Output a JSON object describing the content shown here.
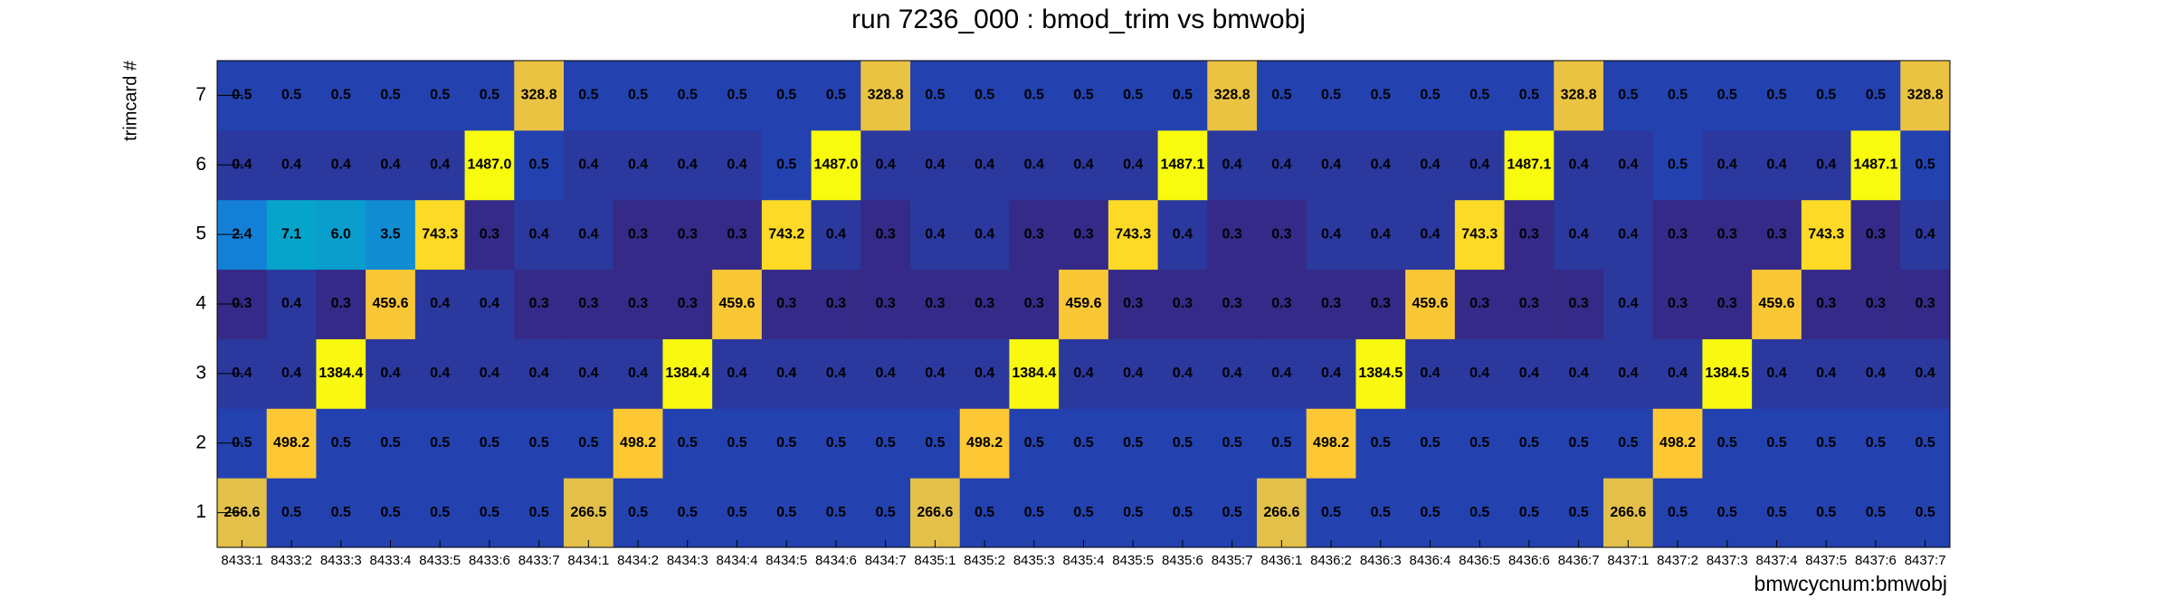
{
  "chart_data": {
    "type": "heatmap",
    "title": "run 7236_000 : bmod_trim vs bmwobj",
    "x_label": "bmwcycnum:bmwobj",
    "y_label": "trimcard #",
    "zlog": true,
    "palette": [
      "#352a87",
      "#0f5cdd",
      "#1481d6",
      "#06a4ca",
      "#2eb7a4",
      "#87bf77",
      "#d1bb59",
      "#fec832",
      "#f9fb0e"
    ],
    "categories": [
      "8433:1",
      "8433:2",
      "8433:3",
      "8433:4",
      "8433:5",
      "8433:6",
      "8433:7",
      "8434:1",
      "8434:2",
      "8434:3",
      "8434:4",
      "8434:5",
      "8434:6",
      "8434:7",
      "8435:1",
      "8435:2",
      "8435:3",
      "8435:4",
      "8435:5",
      "8435:6",
      "8435:7",
      "8436:1",
      "8436:2",
      "8436:3",
      "8436:4",
      "8436:5",
      "8436:6",
      "8436:7",
      "8437:1",
      "8437:2",
      "8437:3",
      "8437:4",
      "8437:5",
      "8437:6",
      "8437:7"
    ],
    "y_categories": [
      "1",
      "2",
      "3",
      "4",
      "5",
      "6",
      "7"
    ],
    "rows": [
      {
        "values": [
          266.6,
          0.5,
          0.5,
          0.5,
          0.5,
          0.5,
          0.5,
          266.5,
          0.5,
          0.5,
          0.5,
          0.5,
          0.5,
          0.5,
          266.6,
          0.5,
          0.5,
          0.5,
          0.5,
          0.5,
          0.5,
          266.6,
          0.5,
          0.5,
          0.5,
          0.5,
          0.5,
          0.5,
          266.6,
          0.5,
          0.5,
          0.5,
          0.5,
          0.5,
          0.5
        ],
        "value_labels": [
          "266.6",
          "0.5",
          "0.5",
          "0.5",
          "0.5",
          "0.5",
          "0.5",
          "266.5",
          "0.5",
          "0.5",
          "0.5",
          "0.5",
          "0.5",
          "0.5",
          "266.6",
          "0.5",
          "0.5",
          "0.5",
          "0.5",
          "0.5",
          "0.5",
          "266.6",
          "0.5",
          "0.5",
          "0.5",
          "0.5",
          "0.5",
          "0.5",
          "266.6",
          "0.5",
          "0.5",
          "0.5",
          "0.5",
          "0.5",
          "0.5"
        ]
      },
      {
        "values": [
          0.5,
          498.2,
          0.5,
          0.5,
          0.5,
          0.5,
          0.5,
          0.5,
          498.2,
          0.5,
          0.5,
          0.5,
          0.5,
          0.5,
          0.5,
          498.2,
          0.5,
          0.5,
          0.5,
          0.5,
          0.5,
          0.5,
          498.2,
          0.5,
          0.5,
          0.5,
          0.5,
          0.5,
          0.5,
          498.2,
          0.5,
          0.5,
          0.5,
          0.5,
          0.5
        ],
        "value_labels": [
          "0.5",
          "498.2",
          "0.5",
          "0.5",
          "0.5",
          "0.5",
          "0.5",
          "0.5",
          "498.2",
          "0.5",
          "0.5",
          "0.5",
          "0.5",
          "0.5",
          "0.5",
          "498.2",
          "0.5",
          "0.5",
          "0.5",
          "0.5",
          "0.5",
          "0.5",
          "498.2",
          "0.5",
          "0.5",
          "0.5",
          "0.5",
          "0.5",
          "0.5",
          "498.2",
          "0.5",
          "0.5",
          "0.5",
          "0.5",
          "0.5"
        ]
      },
      {
        "values": [
          0.4,
          0.4,
          1384.4,
          0.4,
          0.4,
          0.4,
          0.4,
          0.4,
          0.4,
          1384.4,
          0.4,
          0.4,
          0.4,
          0.4,
          0.4,
          0.4,
          1384.4,
          0.4,
          0.4,
          0.4,
          0.4,
          0.4,
          0.4,
          1384.5,
          0.4,
          0.4,
          0.4,
          0.4,
          0.4,
          0.4,
          1384.5,
          0.4,
          0.4,
          0.4,
          0.4
        ],
        "value_labels": [
          "0.4",
          "0.4",
          "1384.4",
          "0.4",
          "0.4",
          "0.4",
          "0.4",
          "0.4",
          "0.4",
          "1384.4",
          "0.4",
          "0.4",
          "0.4",
          "0.4",
          "0.4",
          "0.4",
          "1384.4",
          "0.4",
          "0.4",
          "0.4",
          "0.4",
          "0.4",
          "0.4",
          "1384.5",
          "0.4",
          "0.4",
          "0.4",
          "0.4",
          "0.4",
          "0.4",
          "1384.5",
          "0.4",
          "0.4",
          "0.4",
          "0.4"
        ]
      },
      {
        "values": [
          0.3,
          0.4,
          0.3,
          459.6,
          0.4,
          0.4,
          0.3,
          0.3,
          0.3,
          0.3,
          459.6,
          0.3,
          0.3,
          0.3,
          0.3,
          0.3,
          0.3,
          459.6,
          0.3,
          0.3,
          0.3,
          0.3,
          0.3,
          0.3,
          459.6,
          0.3,
          0.3,
          0.3,
          0.4,
          0.3,
          0.3,
          459.6,
          0.3,
          0.3,
          0.3
        ],
        "value_labels": [
          "0.3",
          "0.4",
          "0.3",
          "459.6",
          "0.4",
          "0.4",
          "0.3",
          "0.3",
          "0.3",
          "0.3",
          "459.6",
          "0.3",
          "0.3",
          "0.3",
          "0.3",
          "0.3",
          "0.3",
          "459.6",
          "0.3",
          "0.3",
          "0.3",
          "0.3",
          "0.3",
          "0.3",
          "459.6",
          "0.3",
          "0.3",
          "0.3",
          "0.4",
          "0.3",
          "0.3",
          "459.6",
          "0.3",
          "0.3",
          "0.3"
        ]
      },
      {
        "values": [
          2.4,
          7.1,
          6.0,
          3.5,
          743.3,
          0.3,
          0.4,
          0.4,
          0.3,
          0.3,
          0.3,
          743.2,
          0.4,
          0.3,
          0.4,
          0.4,
          0.3,
          0.3,
          743.3,
          0.4,
          0.3,
          0.3,
          0.4,
          0.4,
          0.4,
          743.3,
          0.3,
          0.4,
          0.4,
          0.3,
          0.3,
          0.3,
          743.3,
          0.3,
          0.4
        ],
        "value_labels": [
          "2.4",
          "7.1",
          "6.0",
          "3.5",
          "743.3",
          "0.3",
          "0.4",
          "0.4",
          "0.3",
          "0.3",
          "0.3",
          "743.2",
          "0.4",
          "0.3",
          "0.4",
          "0.4",
          "0.3",
          "0.3",
          "743.3",
          "0.4",
          "0.3",
          "0.3",
          "0.4",
          "0.4",
          "0.4",
          "743.3",
          "0.3",
          "0.4",
          "0.4",
          "0.3",
          "0.3",
          "0.3",
          "743.3",
          "0.3",
          "0.4"
        ]
      },
      {
        "values": [
          0.4,
          0.4,
          0.4,
          0.4,
          0.4,
          1487.0,
          0.5,
          0.4,
          0.4,
          0.4,
          0.4,
          0.5,
          1487.0,
          0.4,
          0.4,
          0.4,
          0.4,
          0.4,
          0.4,
          1487.1,
          0.4,
          0.4,
          0.4,
          0.4,
          0.4,
          0.4,
          1487.1,
          0.4,
          0.4,
          0.5,
          0.4,
          0.4,
          0.4,
          1487.1,
          0.5
        ],
        "value_labels": [
          "0.4",
          "0.4",
          "0.4",
          "0.4",
          "0.4",
          "1487.0",
          "0.5",
          "0.4",
          "0.4",
          "0.4",
          "0.4",
          "0.5",
          "1487.0",
          "0.4",
          "0.4",
          "0.4",
          "0.4",
          "0.4",
          "0.4",
          "1487.1",
          "0.4",
          "0.4",
          "0.4",
          "0.4",
          "0.4",
          "0.4",
          "1487.1",
          "0.4",
          "0.4",
          "0.5",
          "0.4",
          "0.4",
          "0.4",
          "1487.1",
          "0.5"
        ]
      },
      {
        "values": [
          0.5,
          0.5,
          0.5,
          0.5,
          0.5,
          0.5,
          328.8,
          0.5,
          0.5,
          0.5,
          0.5,
          0.5,
          0.5,
          328.8,
          0.5,
          0.5,
          0.5,
          0.5,
          0.5,
          0.5,
          328.8,
          0.5,
          0.5,
          0.5,
          0.5,
          0.5,
          0.5,
          328.8,
          0.5,
          0.5,
          0.5,
          0.5,
          0.5,
          0.5,
          328.8
        ],
        "value_labels": [
          "0.5",
          "0.5",
          "0.5",
          "0.5",
          "0.5",
          "0.5",
          "328.8",
          "0.5",
          "0.5",
          "0.5",
          "0.5",
          "0.5",
          "0.5",
          "328.8",
          "0.5",
          "0.5",
          "0.5",
          "0.5",
          "0.5",
          "0.5",
          "328.8",
          "0.5",
          "0.5",
          "0.5",
          "0.5",
          "0.5",
          "0.5",
          "328.8",
          "0.5",
          "0.5",
          "0.5",
          "0.5",
          "0.5",
          "0.5",
          "328.8"
        ]
      }
    ]
  }
}
